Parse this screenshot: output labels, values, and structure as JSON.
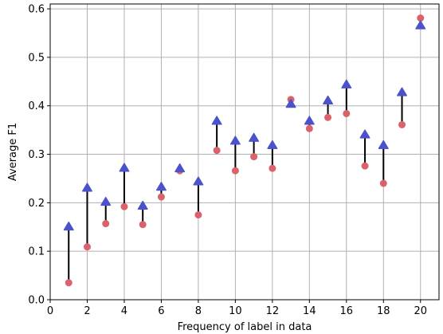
{
  "chart_data": {
    "type": "scatter",
    "xlabel": "Frequency of label in data",
    "ylabel": "Average F1",
    "xlim": [
      0,
      21
    ],
    "ylim": [
      0,
      0.61
    ],
    "xticks": [
      0,
      2,
      4,
      6,
      8,
      10,
      12,
      14,
      16,
      18,
      20
    ],
    "yticks": [
      0.0,
      0.1,
      0.2,
      0.3,
      0.4,
      0.5,
      0.6
    ],
    "grid": true,
    "x": [
      1,
      2,
      3,
      4,
      5,
      6,
      7,
      8,
      9,
      10,
      11,
      12,
      13,
      14,
      15,
      16,
      17,
      18,
      19,
      20
    ],
    "series": [
      {
        "marker": "circle",
        "color": "#d9626b",
        "values": [
          0.035,
          0.109,
          0.157,
          0.192,
          0.155,
          0.212,
          0.266,
          0.175,
          0.308,
          0.266,
          0.295,
          0.271,
          0.413,
          0.353,
          0.376,
          0.384,
          0.276,
          0.24,
          0.361,
          0.581
        ]
      },
      {
        "marker": "triangle-up",
        "color": "#4a52cc",
        "values": [
          0.15,
          0.23,
          0.201,
          0.271,
          0.193,
          0.232,
          0.27,
          0.243,
          0.368,
          0.327,
          0.333,
          0.318,
          0.403,
          0.368,
          0.41,
          0.443,
          0.34,
          0.318,
          0.427,
          0.565
        ]
      }
    ],
    "connector_color": "#000000"
  }
}
